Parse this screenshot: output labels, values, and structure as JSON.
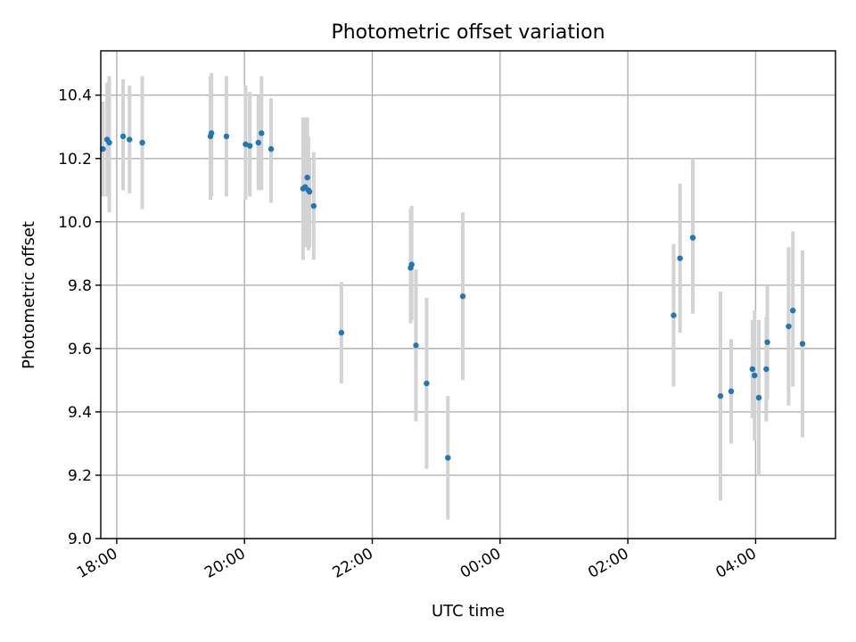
{
  "chart_data": {
    "type": "scatter",
    "title": "Photometric offset variation",
    "xlabel": "UTC time",
    "ylabel": "Photometric offset",
    "xlim": [
      "17:45",
      "05:15"
    ],
    "ylim": [
      9.0,
      10.54
    ],
    "x_ticks": [
      "18:00",
      "20:00",
      "22:00",
      "00:00",
      "02:00",
      "04:00"
    ],
    "y_ticks": [
      "9.0",
      "9.2",
      "9.4",
      "9.6",
      "9.8",
      "10.0",
      "10.2",
      "10.4"
    ],
    "grid": true,
    "marker_color": "#1f77b4",
    "errorbar_color": "#d3d3d3",
    "points": [
      {
        "t": "17:47",
        "y": 10.23,
        "lo": 10.08,
        "hi": 10.38
      },
      {
        "t": "17:51",
        "y": 10.26,
        "lo": 10.08,
        "hi": 10.44
      },
      {
        "t": "17:53",
        "y": 10.25,
        "lo": 10.03,
        "hi": 10.46
      },
      {
        "t": "18:06",
        "y": 10.27,
        "lo": 10.1,
        "hi": 10.45
      },
      {
        "t": "18:12",
        "y": 10.26,
        "lo": 10.09,
        "hi": 10.43
      },
      {
        "t": "18:24",
        "y": 10.25,
        "lo": 10.04,
        "hi": 10.46
      },
      {
        "t": "19:28",
        "y": 10.27,
        "lo": 10.07,
        "hi": 10.46
      },
      {
        "t": "19:29",
        "y": 10.28,
        "lo": 10.08,
        "hi": 10.47
      },
      {
        "t": "19:43",
        "y": 10.27,
        "lo": 10.08,
        "hi": 10.46
      },
      {
        "t": "20:01",
        "y": 10.245,
        "lo": 10.07,
        "hi": 10.43
      },
      {
        "t": "20:05",
        "y": 10.24,
        "lo": 10.08,
        "hi": 10.41
      },
      {
        "t": "20:13",
        "y": 10.25,
        "lo": 10.1,
        "hi": 10.4
      },
      {
        "t": "20:16",
        "y": 10.28,
        "lo": 10.1,
        "hi": 10.46
      },
      {
        "t": "20:25",
        "y": 10.23,
        "lo": 10.06,
        "hi": 10.39
      },
      {
        "t": "20:55",
        "y": 10.105,
        "lo": 9.88,
        "hi": 10.33
      },
      {
        "t": "20:57",
        "y": 10.11,
        "lo": 9.92,
        "hi": 10.33
      },
      {
        "t": "20:59",
        "y": 10.14,
        "lo": 9.93,
        "hi": 10.33
      },
      {
        "t": "21:00",
        "y": 10.1,
        "lo": 9.91,
        "hi": 10.27
      },
      {
        "t": "21:01",
        "y": 10.095,
        "lo": 9.92,
        "hi": 10.2
      },
      {
        "t": "21:05",
        "y": 10.05,
        "lo": 9.88,
        "hi": 10.22
      },
      {
        "t": "21:31",
        "y": 9.65,
        "lo": 9.49,
        "hi": 9.81
      },
      {
        "t": "22:36",
        "y": 9.855,
        "lo": 9.68,
        "hi": 10.04
      },
      {
        "t": "22:37",
        "y": 9.865,
        "lo": 9.69,
        "hi": 10.05
      },
      {
        "t": "22:41",
        "y": 9.61,
        "lo": 9.37,
        "hi": 9.85
      },
      {
        "t": "22:51",
        "y": 9.49,
        "lo": 9.22,
        "hi": 9.76
      },
      {
        "t": "23:11",
        "y": 9.255,
        "lo": 9.06,
        "hi": 9.45
      },
      {
        "t": "23:25",
        "y": 9.765,
        "lo": 9.5,
        "hi": 10.03
      },
      {
        "t": "02:43",
        "y": 9.705,
        "lo": 9.48,
        "hi": 9.93
      },
      {
        "t": "02:49",
        "y": 9.885,
        "lo": 9.65,
        "hi": 10.12
      },
      {
        "t": "03:01",
        "y": 9.95,
        "lo": 9.71,
        "hi": 10.2
      },
      {
        "t": "03:27",
        "y": 9.45,
        "lo": 9.12,
        "hi": 9.78
      },
      {
        "t": "03:37",
        "y": 9.465,
        "lo": 9.3,
        "hi": 9.63
      },
      {
        "t": "03:57",
        "y": 9.535,
        "lo": 9.38,
        "hi": 9.69
      },
      {
        "t": "03:59",
        "y": 9.515,
        "lo": 9.31,
        "hi": 9.72
      },
      {
        "t": "04:03",
        "y": 9.445,
        "lo": 9.2,
        "hi": 9.69
      },
      {
        "t": "04:10",
        "y": 9.535,
        "lo": 9.37,
        "hi": 9.7
      },
      {
        "t": "04:11",
        "y": 9.62,
        "lo": 9.44,
        "hi": 9.8
      },
      {
        "t": "04:31",
        "y": 9.67,
        "lo": 9.42,
        "hi": 9.92
      },
      {
        "t": "04:35",
        "y": 9.72,
        "lo": 9.48,
        "hi": 9.97
      },
      {
        "t": "04:44",
        "y": 9.615,
        "lo": 9.32,
        "hi": 9.91
      }
    ]
  }
}
